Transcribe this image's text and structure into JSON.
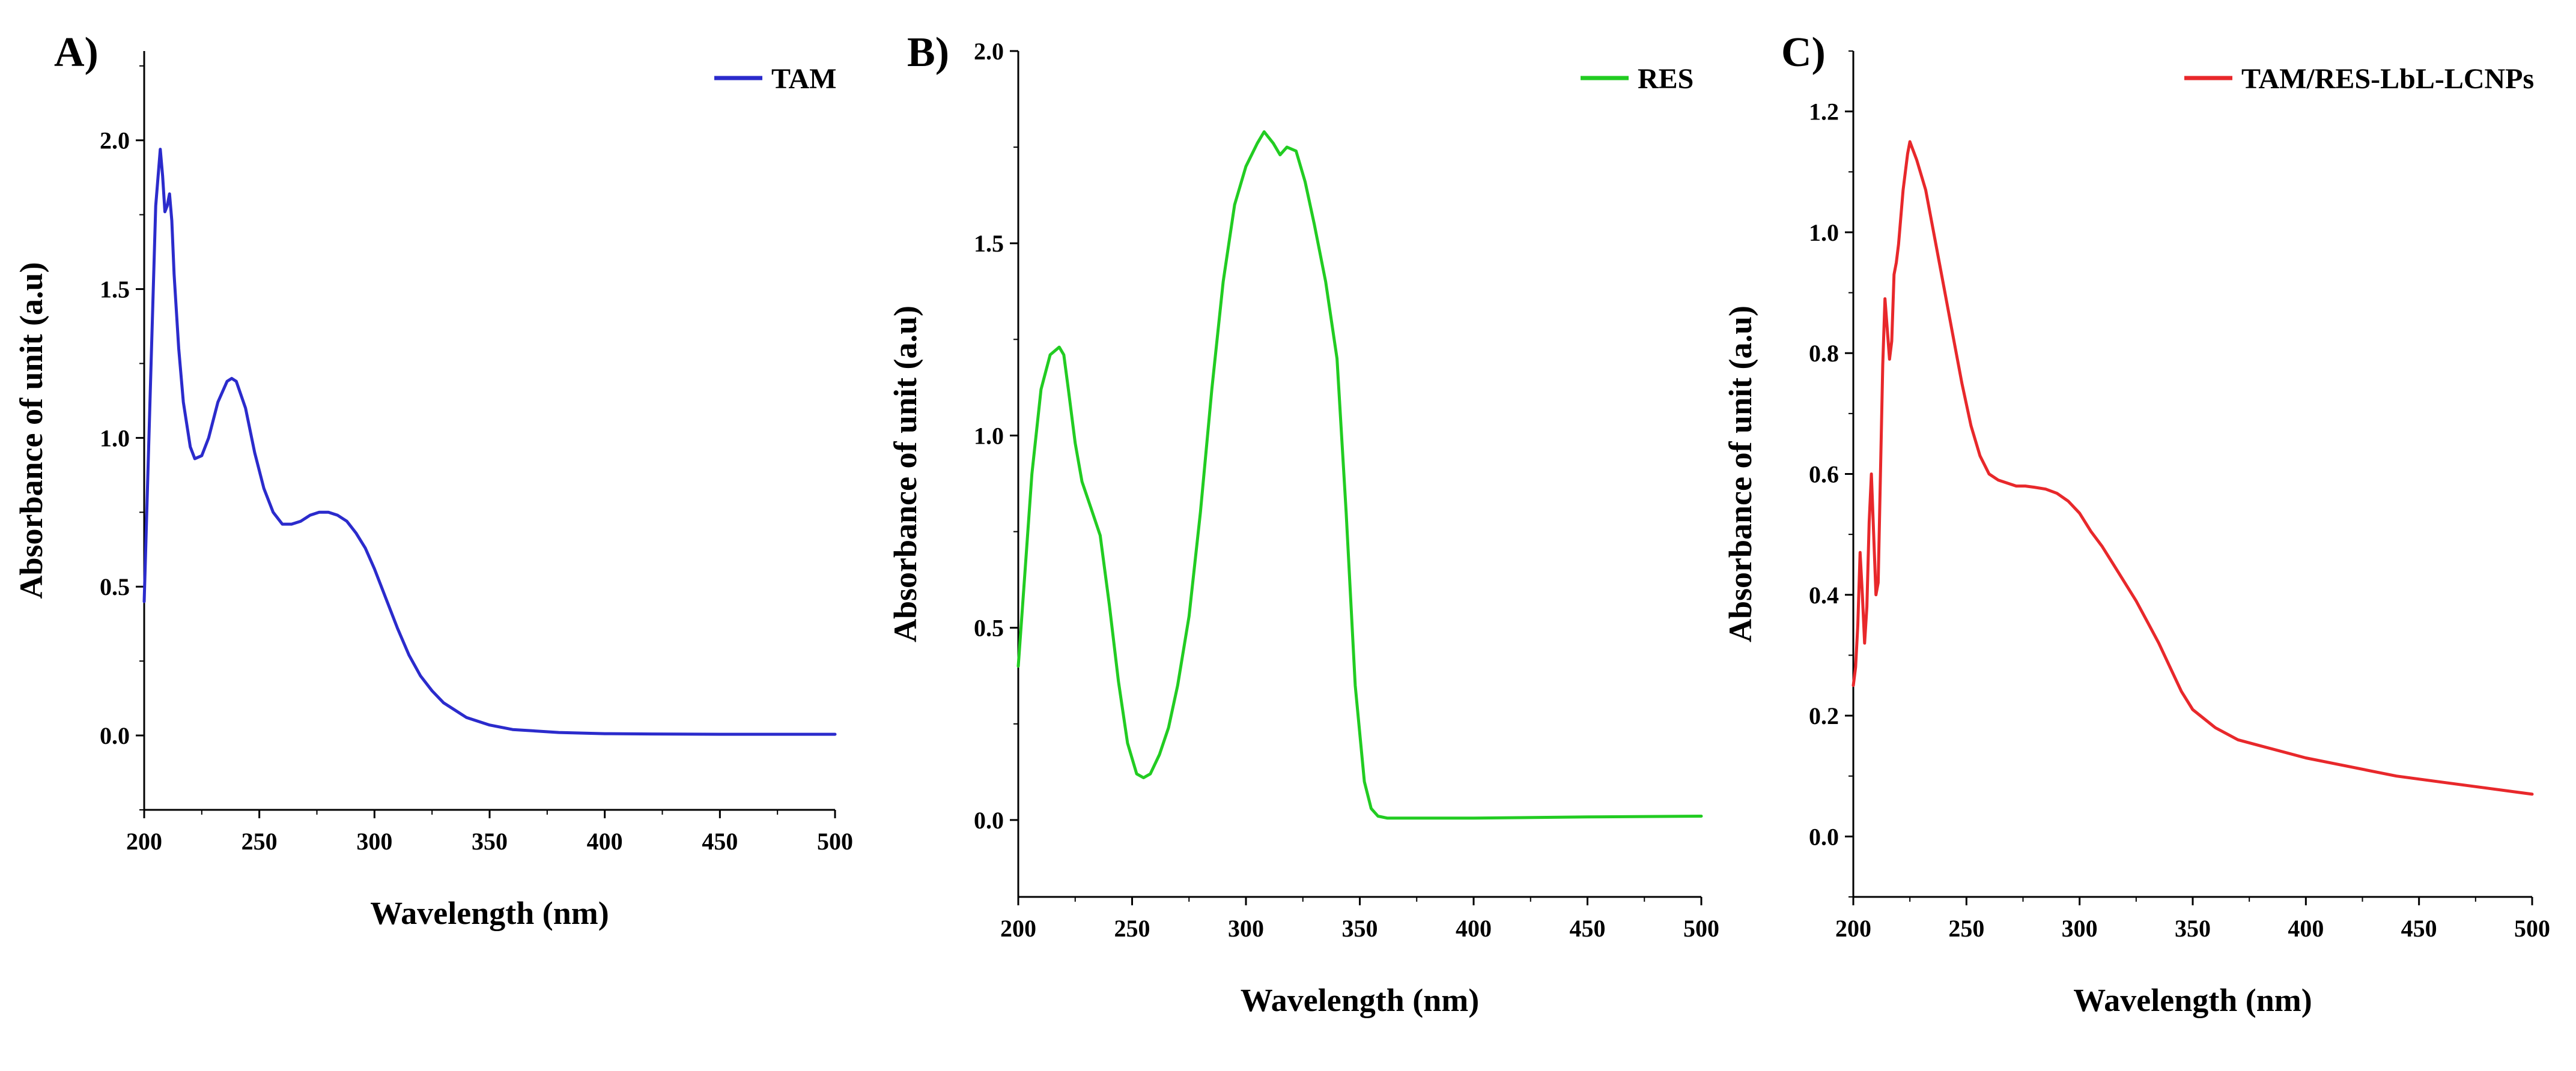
{
  "figure": {
    "panels": [
      "A)",
      "B)",
      "C)"
    ]
  },
  "chart_data": [
    {
      "type": "line",
      "panel": "A)",
      "xlabel": "Wavelength (nm)",
      "ylabel": "Absorbance of unit (a.u)",
      "xlim": [
        200,
        500
      ],
      "ylim": [
        -0.25,
        2.3
      ],
      "xticks": [
        200,
        250,
        300,
        350,
        400,
        450,
        500
      ],
      "yticks": [
        0.0,
        0.5,
        1.0,
        1.5,
        2.0
      ],
      "ytick_labels": [
        "0.0",
        "0.5",
        "1.0",
        "1.5",
        "2.0"
      ],
      "legend_position": "top-right",
      "series": [
        {
          "name": "TAM",
          "color": "#2b2bcc",
          "x": [
            200,
            203,
            205,
            207,
            208,
            209,
            210,
            211,
            212,
            213,
            215,
            217,
            220,
            222,
            225,
            228,
            232,
            236,
            238,
            240,
            244,
            248,
            252,
            256,
            260,
            264,
            268,
            272,
            276,
            280,
            284,
            288,
            292,
            296,
            300,
            305,
            310,
            315,
            320,
            325,
            330,
            340,
            350,
            360,
            380,
            400,
            420,
            450,
            500
          ],
          "y": [
            0.45,
            1.25,
            1.78,
            1.97,
            1.88,
            1.76,
            1.78,
            1.82,
            1.73,
            1.55,
            1.3,
            1.12,
            0.97,
            0.93,
            0.94,
            1.0,
            1.12,
            1.19,
            1.2,
            1.19,
            1.1,
            0.95,
            0.83,
            0.75,
            0.71,
            0.71,
            0.72,
            0.74,
            0.75,
            0.75,
            0.74,
            0.72,
            0.68,
            0.63,
            0.56,
            0.46,
            0.36,
            0.27,
            0.2,
            0.15,
            0.11,
            0.06,
            0.035,
            0.02,
            0.01,
            0.006,
            0.005,
            0.004,
            0.004
          ]
        }
      ]
    },
    {
      "type": "line",
      "panel": "B)",
      "xlabel": "Wavelength (nm)",
      "ylabel": "Absorbance of unit (a.u)",
      "xlim": [
        200,
        500
      ],
      "ylim": [
        -0.2,
        2.0
      ],
      "xticks": [
        200,
        250,
        300,
        350,
        400,
        450,
        500
      ],
      "yticks": [
        0.0,
        0.5,
        1.0,
        1.5,
        2.0
      ],
      "ytick_labels": [
        "0.0",
        "0.5",
        "1.0",
        "1.5",
        "2.0"
      ],
      "legend_position": "top-right",
      "series": [
        {
          "name": "RES",
          "color": "#22cc22",
          "x": [
            200,
            203,
            206,
            210,
            214,
            218,
            220,
            222,
            225,
            228,
            232,
            236,
            240,
            244,
            248,
            252,
            255,
            258,
            262,
            266,
            270,
            275,
            280,
            285,
            290,
            295,
            300,
            305,
            308,
            312,
            315,
            318,
            322,
            326,
            330,
            335,
            340,
            344,
            348,
            352,
            355,
            358,
            362,
            370,
            400,
            450,
            500
          ],
          "y": [
            0.4,
            0.65,
            0.9,
            1.12,
            1.21,
            1.23,
            1.21,
            1.12,
            0.98,
            0.88,
            0.81,
            0.74,
            0.56,
            0.36,
            0.2,
            0.12,
            0.11,
            0.12,
            0.17,
            0.24,
            0.35,
            0.53,
            0.8,
            1.12,
            1.4,
            1.6,
            1.7,
            1.76,
            1.79,
            1.76,
            1.73,
            1.75,
            1.74,
            1.66,
            1.55,
            1.4,
            1.2,
            0.8,
            0.35,
            0.1,
            0.03,
            0.01,
            0.005,
            0.005,
            0.005,
            0.008,
            0.01
          ]
        }
      ]
    },
    {
      "type": "line",
      "panel": "C)",
      "xlabel": "Wavelength (nm)",
      "ylabel": "Absorbance of unit (a.u)",
      "xlim": [
        200,
        500
      ],
      "ylim": [
        -0.1,
        1.3
      ],
      "xticks": [
        200,
        250,
        300,
        350,
        400,
        450,
        500
      ],
      "yticks": [
        0.0,
        0.2,
        0.4,
        0.6,
        0.8,
        1.0,
        1.2
      ],
      "ytick_labels": [
        "0.0",
        "0.2",
        "0.4",
        "0.6",
        "0.8",
        "1.0",
        "1.2"
      ],
      "legend_position": "top-right",
      "series": [
        {
          "name": "TAM/RES-LbL-LCNPs",
          "color": "#e8282b",
          "x": [
            200,
            201,
            202,
            203,
            204,
            205,
            206,
            207,
            208,
            209,
            210,
            211,
            212,
            213,
            214,
            215,
            216,
            217,
            218,
            219,
            220,
            222,
            224,
            225,
            226,
            228,
            232,
            236,
            240,
            244,
            248,
            252,
            256,
            260,
            264,
            268,
            272,
            276,
            280,
            285,
            290,
            295,
            300,
            305,
            310,
            315,
            320,
            325,
            330,
            335,
            340,
            345,
            350,
            360,
            370,
            380,
            400,
            420,
            440,
            460,
            480,
            500
          ],
          "y": [
            0.25,
            0.28,
            0.35,
            0.47,
            0.4,
            0.32,
            0.38,
            0.52,
            0.6,
            0.5,
            0.4,
            0.42,
            0.6,
            0.78,
            0.89,
            0.84,
            0.79,
            0.82,
            0.93,
            0.95,
            0.98,
            1.07,
            1.13,
            1.15,
            1.14,
            1.12,
            1.07,
            0.99,
            0.91,
            0.83,
            0.75,
            0.68,
            0.63,
            0.6,
            0.59,
            0.585,
            0.58,
            0.58,
            0.578,
            0.575,
            0.568,
            0.555,
            0.535,
            0.505,
            0.48,
            0.45,
            0.42,
            0.39,
            0.355,
            0.32,
            0.28,
            0.24,
            0.21,
            0.18,
            0.16,
            0.15,
            0.13,
            0.115,
            0.1,
            0.09,
            0.08,
            0.07
          ]
        }
      ]
    }
  ]
}
